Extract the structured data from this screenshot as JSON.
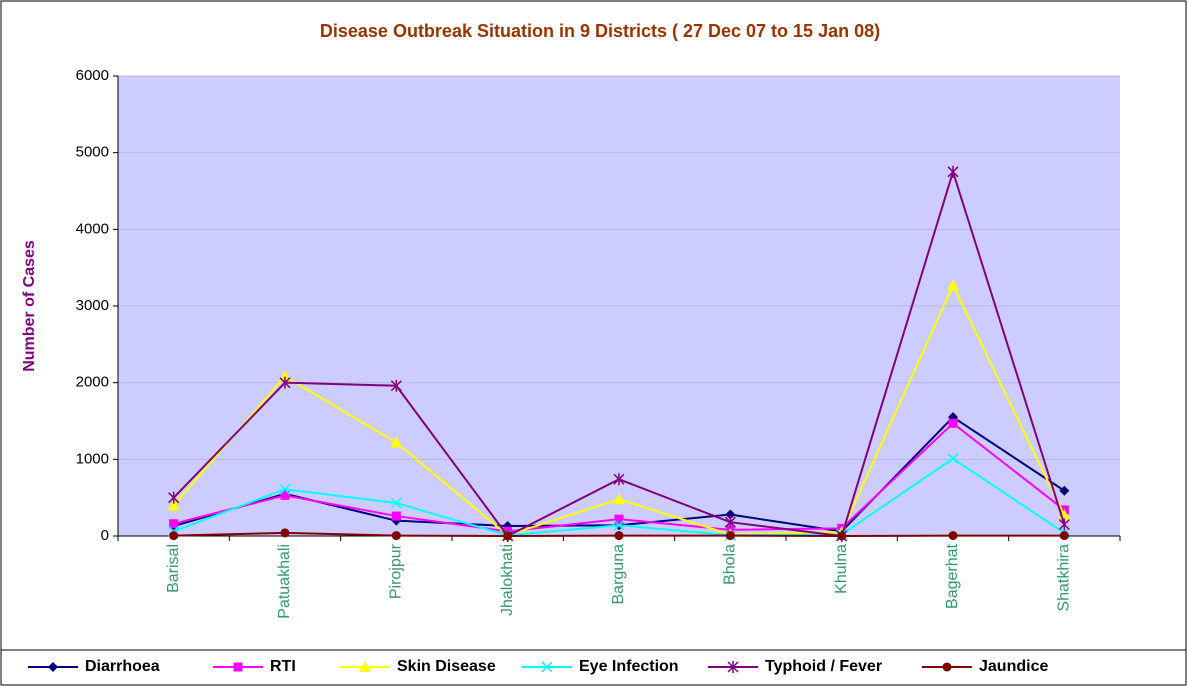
{
  "chart_data": {
    "type": "line",
    "title": "Disease Outbreak Situation in 9 Districts ( 27 Dec 07 to 15 Jan 08)",
    "y_label": "Number of Cases",
    "categories": [
      "Barisal",
      "Patuakhali",
      "Pirojpur",
      "Jhalokhati",
      "Barguna",
      "Bhola",
      "Khulna",
      "Bagerhat",
      "Shatkhira"
    ],
    "series": [
      {
        "name": "Diarrhoea",
        "color": "#000080",
        "marker": "diamond",
        "values": [
          130,
          550,
          200,
          130,
          140,
          280,
          60,
          1550,
          590
        ]
      },
      {
        "name": "RTI",
        "color": "#ff00ff",
        "marker": "square",
        "values": [
          160,
          530,
          260,
          60,
          220,
          80,
          100,
          1470,
          340
        ]
      },
      {
        "name": "Skin Disease",
        "color": "#ffff00",
        "marker": "triangle",
        "values": [
          400,
          2080,
          1220,
          10,
          480,
          20,
          50,
          3270,
          270
        ]
      },
      {
        "name": "Eye Infection",
        "color": "#00ffff",
        "marker": "x",
        "values": [
          60,
          610,
          430,
          10,
          140,
          10,
          20,
          1010,
          40
        ]
      },
      {
        "name": "Typhoid / Fever",
        "color": "#800080",
        "marker": "star",
        "values": [
          500,
          2000,
          1960,
          0,
          740,
          180,
          0,
          4750,
          150
        ]
      },
      {
        "name": "Jaundice",
        "color": "#800000",
        "marker": "circle",
        "values": [
          5,
          40,
          5,
          0,
          5,
          5,
          0,
          5,
          5
        ]
      }
    ],
    "ylim": [
      0,
      6000
    ],
    "yticks": [
      0,
      1000,
      2000,
      3000,
      4000,
      5000,
      6000
    ],
    "grid": true,
    "legend": "bottom"
  }
}
